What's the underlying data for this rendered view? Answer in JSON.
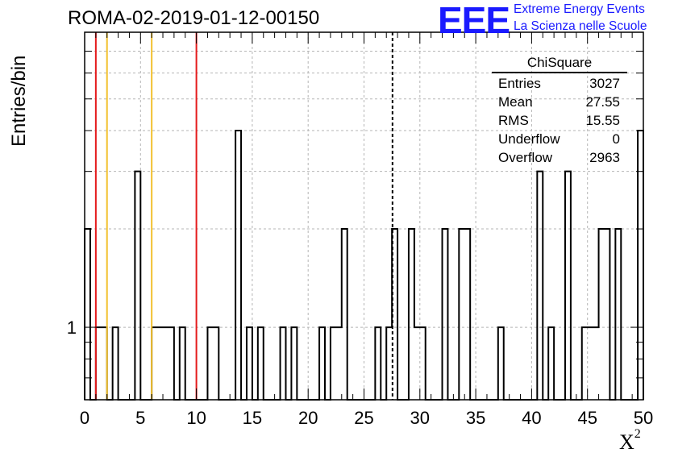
{
  "header": {
    "run_title": "ROMA-02-2019-01-12-00150"
  },
  "logo": {
    "mark": "EEE",
    "line1": "Extreme Energy Events",
    "line2": "La Scienza nelle Scuole",
    "color": "#1a1aff"
  },
  "stats_box": {
    "title": "ChiSquare",
    "rows": [
      {
        "label": "Entries",
        "value": "3027"
      },
      {
        "label": "Mean",
        "value": "27.55"
      },
      {
        "label": "RMS",
        "value": "15.55"
      },
      {
        "label": "Underflow",
        "value": "0"
      },
      {
        "label": "Overflow",
        "value": "2963"
      }
    ]
  },
  "chart_data": {
    "type": "histogram",
    "xlabel": "X²",
    "ylabel": "Entries/bin",
    "xlim": [
      0,
      50
    ],
    "bin_width": 0.5,
    "y_scale": "log",
    "ylim": [
      0.6,
      8
    ],
    "grid": true,
    "x_ticks": [
      "0",
      "5",
      "10",
      "15",
      "20",
      "25",
      "30",
      "35",
      "40",
      "45",
      "50"
    ],
    "y_ticks": [
      "1"
    ],
    "bins": [
      {
        "x": 0.0,
        "count": 2
      },
      {
        "x": 1.0,
        "count": 1
      },
      {
        "x": 1.5,
        "count": 1
      },
      {
        "x": 2.5,
        "count": 1
      },
      {
        "x": 4.5,
        "count": 3
      },
      {
        "x": 6.0,
        "count": 1
      },
      {
        "x": 6.5,
        "count": 1
      },
      {
        "x": 7.0,
        "count": 1
      },
      {
        "x": 7.5,
        "count": 1
      },
      {
        "x": 8.5,
        "count": 1
      },
      {
        "x": 11.0,
        "count": 1
      },
      {
        "x": 11.5,
        "count": 1
      },
      {
        "x": 13.5,
        "count": 4
      },
      {
        "x": 14.5,
        "count": 1
      },
      {
        "x": 15.5,
        "count": 1
      },
      {
        "x": 17.5,
        "count": 1
      },
      {
        "x": 18.5,
        "count": 1
      },
      {
        "x": 21.0,
        "count": 1
      },
      {
        "x": 22.0,
        "count": 1
      },
      {
        "x": 22.5,
        "count": 1
      },
      {
        "x": 23.0,
        "count": 2
      },
      {
        "x": 26.0,
        "count": 1
      },
      {
        "x": 27.0,
        "count": 1
      },
      {
        "x": 27.5,
        "count": 2
      },
      {
        "x": 29.0,
        "count": 2
      },
      {
        "x": 29.5,
        "count": 1
      },
      {
        "x": 30.0,
        "count": 1
      },
      {
        "x": 32.0,
        "count": 2
      },
      {
        "x": 33.5,
        "count": 2
      },
      {
        "x": 34.0,
        "count": 2
      },
      {
        "x": 37.0,
        "count": 1
      },
      {
        "x": 40.5,
        "count": 3
      },
      {
        "x": 41.5,
        "count": 1
      },
      {
        "x": 43.0,
        "count": 3
      },
      {
        "x": 44.5,
        "count": 1
      },
      {
        "x": 45.0,
        "count": 1
      },
      {
        "x": 45.5,
        "count": 1
      },
      {
        "x": 46.0,
        "count": 2
      },
      {
        "x": 46.5,
        "count": 2
      },
      {
        "x": 47.5,
        "count": 2
      },
      {
        "x": 49.5,
        "count": 4
      }
    ],
    "reference_lines": [
      {
        "x": 1.0,
        "color": "#e41a1c",
        "style": "solid"
      },
      {
        "x": 2.0,
        "color": "#f2c12e",
        "style": "solid"
      },
      {
        "x": 6.0,
        "color": "#f2c12e",
        "style": "solid"
      },
      {
        "x": 10.0,
        "color": "#e41a1c",
        "style": "solid"
      },
      {
        "x": 27.55,
        "color": "#000000",
        "style": "dashed"
      }
    ]
  }
}
